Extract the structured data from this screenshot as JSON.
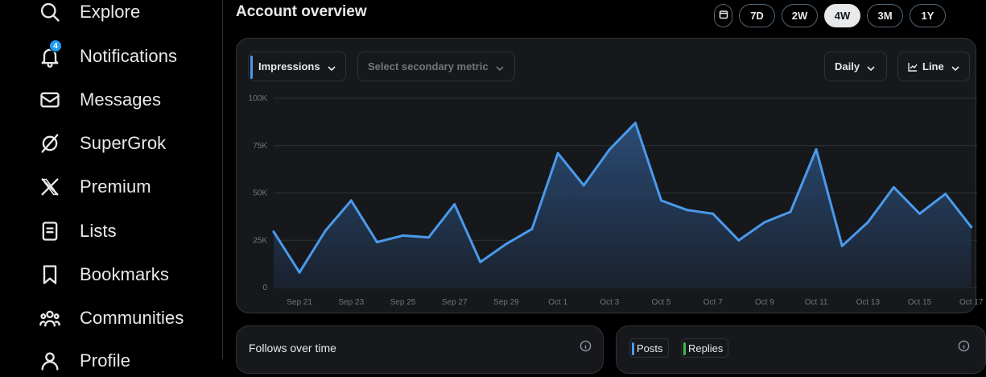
{
  "sidebar": {
    "items": [
      {
        "label": "Explore",
        "icon": "search-icon"
      },
      {
        "label": "Notifications",
        "icon": "bell-icon",
        "badge": "4"
      },
      {
        "label": "Messages",
        "icon": "envelope-icon"
      },
      {
        "label": "SuperGrok",
        "icon": "grok-icon"
      },
      {
        "label": "Premium",
        "icon": "x-logo-icon"
      },
      {
        "label": "Lists",
        "icon": "list-icon"
      },
      {
        "label": "Bookmarks",
        "icon": "bookmark-icon"
      },
      {
        "label": "Communities",
        "icon": "people-icon"
      },
      {
        "label": "Profile",
        "icon": "person-icon"
      }
    ]
  },
  "header": {
    "title": "Account overview",
    "ranges": [
      "7D",
      "2W",
      "4W",
      "3M",
      "1Y"
    ],
    "active_range": "4W"
  },
  "controls": {
    "primary_metric": "Impressions",
    "secondary_metric_placeholder": "Select secondary metric",
    "interval": "Daily",
    "chart_type": "Line"
  },
  "chart_data": {
    "type": "area",
    "x": [
      "Sep 20",
      "Sep 21",
      "Sep 22",
      "Sep 23",
      "Sep 24",
      "Sep 25",
      "Sep 26",
      "Sep 27",
      "Sep 28",
      "Sep 29",
      "Sep 30",
      "Oct 1",
      "Oct 2",
      "Oct 3",
      "Oct 4",
      "Oct 5",
      "Oct 6",
      "Oct 7",
      "Oct 8",
      "Oct 9",
      "Oct 10",
      "Oct 11",
      "Oct 12",
      "Oct 13",
      "Oct 14",
      "Oct 15",
      "Oct 16",
      "Oct 17"
    ],
    "tick_labels": [
      "Sep 21",
      "Sep 23",
      "Sep 25",
      "Sep 27",
      "Sep 29",
      "Oct 1",
      "Oct 3",
      "Oct 5",
      "Oct 7",
      "Oct 9",
      "Oct 11",
      "Oct 13",
      "Oct 15",
      "Oct 17"
    ],
    "series": [
      {
        "values": [
          29500,
          8000,
          30000,
          46000,
          24000,
          27500,
          26500,
          44000,
          13500,
          23000,
          31000,
          71000,
          54000,
          73000,
          87000,
          46000,
          41000,
          39000,
          25000,
          34500,
          40000,
          73000,
          22000,
          34500,
          53000,
          39000,
          49500,
          32000
        ]
      }
    ],
    "y_ticks": [
      "0",
      "25K",
      "50K",
      "75K",
      "100K"
    ],
    "ylim": [
      0,
      100000
    ],
    "grid": true,
    "colors": {
      "line": "#4a9aec",
      "fill_top": "#2c4f7a",
      "fill_bottom": "#1a2230",
      "grid": "#2f3336"
    }
  },
  "follows_card": {
    "title": "Follows over time"
  },
  "posts_card": {
    "chips": [
      "Posts",
      "Replies"
    ]
  }
}
